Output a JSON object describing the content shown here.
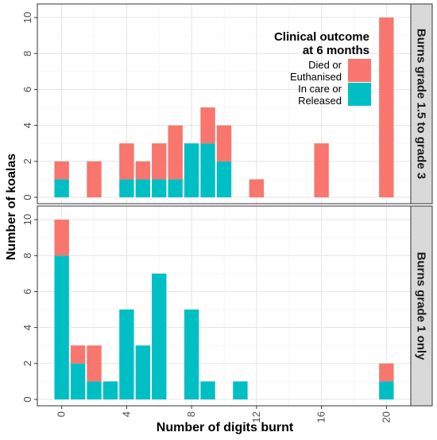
{
  "chart_data": {
    "type": "bar",
    "stacked": true,
    "faceted": true,
    "xlabel": "Number of digits burnt",
    "ylabel": "Number of koalas",
    "xlim": [
      -1.5,
      21.5
    ],
    "ylim": [
      0,
      10.4
    ],
    "x_ticks": [
      0,
      4,
      8,
      12,
      16,
      20
    ],
    "y_ticks": [
      0,
      2,
      4,
      6,
      8,
      10
    ],
    "grid": true,
    "legend": {
      "title_line1": "Clinical outcome",
      "title_line2": "at 6 months",
      "placement": "top-right inside upper panel",
      "entries": [
        {
          "line1": "Died or",
          "line2": "Euthanised",
          "color": "#F8766D"
        },
        {
          "line1": "In care or",
          "line2": "Released",
          "color": "#00BFC4"
        }
      ]
    },
    "series_colors": {
      "died": "#F8766D",
      "care": "#00BFC4"
    },
    "panels": [
      {
        "strip_label": "Burns grade 1.5 to grade 3",
        "bars": [
          {
            "x": 0,
            "care": 1,
            "died": 1
          },
          {
            "x": 2,
            "care": 0,
            "died": 2
          },
          {
            "x": 4,
            "care": 1,
            "died": 2
          },
          {
            "x": 5,
            "care": 1,
            "died": 1
          },
          {
            "x": 6,
            "care": 1,
            "died": 2
          },
          {
            "x": 7,
            "care": 1,
            "died": 3
          },
          {
            "x": 8,
            "care": 3,
            "died": 0
          },
          {
            "x": 9,
            "care": 3,
            "died": 2
          },
          {
            "x": 10,
            "care": 2,
            "died": 2
          },
          {
            "x": 12,
            "care": 0,
            "died": 1
          },
          {
            "x": 16,
            "care": 0,
            "died": 3
          },
          {
            "x": 20,
            "care": 0,
            "died": 10
          }
        ]
      },
      {
        "strip_label": "Burns grade 1 only",
        "bars": [
          {
            "x": 0,
            "care": 8,
            "died": 2
          },
          {
            "x": 1,
            "care": 2,
            "died": 1
          },
          {
            "x": 2,
            "care": 1,
            "died": 2
          },
          {
            "x": 3,
            "care": 1,
            "died": 0
          },
          {
            "x": 4,
            "care": 5,
            "died": 0
          },
          {
            "x": 5,
            "care": 3,
            "died": 0
          },
          {
            "x": 6,
            "care": 7,
            "died": 0
          },
          {
            "x": 8,
            "care": 5,
            "died": 0
          },
          {
            "x": 9,
            "care": 1,
            "died": 0
          },
          {
            "x": 11,
            "care": 1,
            "died": 0
          },
          {
            "x": 20,
            "care": 1,
            "died": 1
          }
        ]
      }
    ]
  }
}
